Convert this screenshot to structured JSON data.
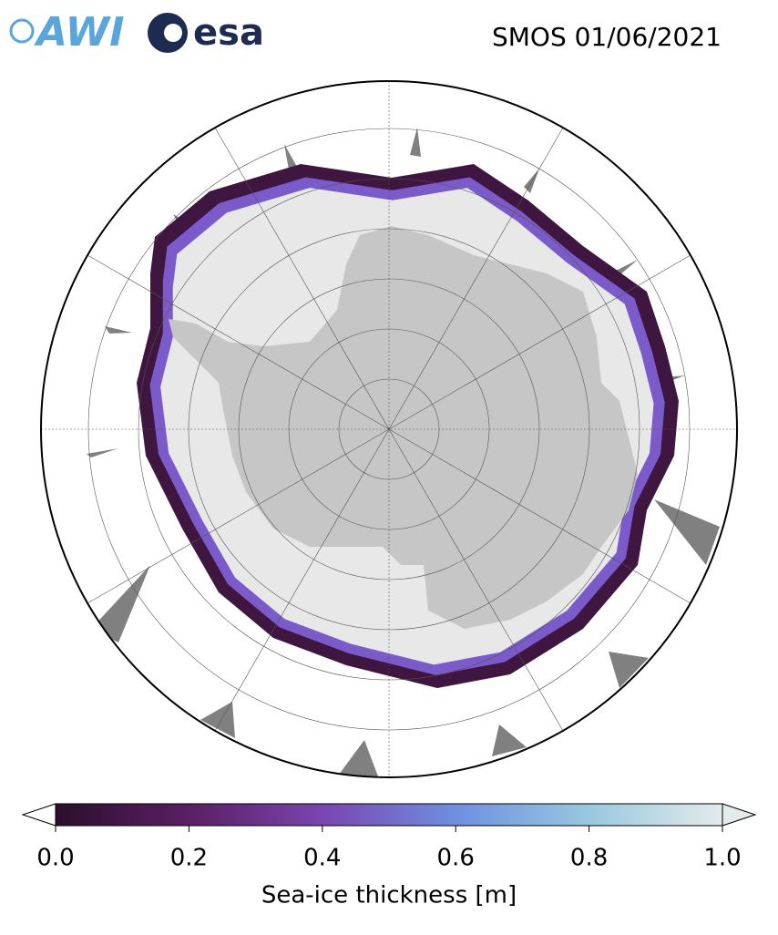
{
  "header": {
    "logos": [
      "AWI",
      "esa"
    ],
    "title": "SMOS 01/06/2021"
  },
  "colorbar": {
    "label": "Sea-ice thickness [m]",
    "lim": [
      0,
      1
    ],
    "ticks": [
      {
        "value": 0,
        "label": "0.0"
      },
      {
        "value": 0.2,
        "label": "0.2"
      },
      {
        "value": 0.4,
        "label": "0.4"
      },
      {
        "value": 0.6,
        "label": "0.6"
      },
      {
        "value": 0.8,
        "label": "0.8"
      },
      {
        "value": 1,
        "label": "1.0"
      }
    ]
  }
}
